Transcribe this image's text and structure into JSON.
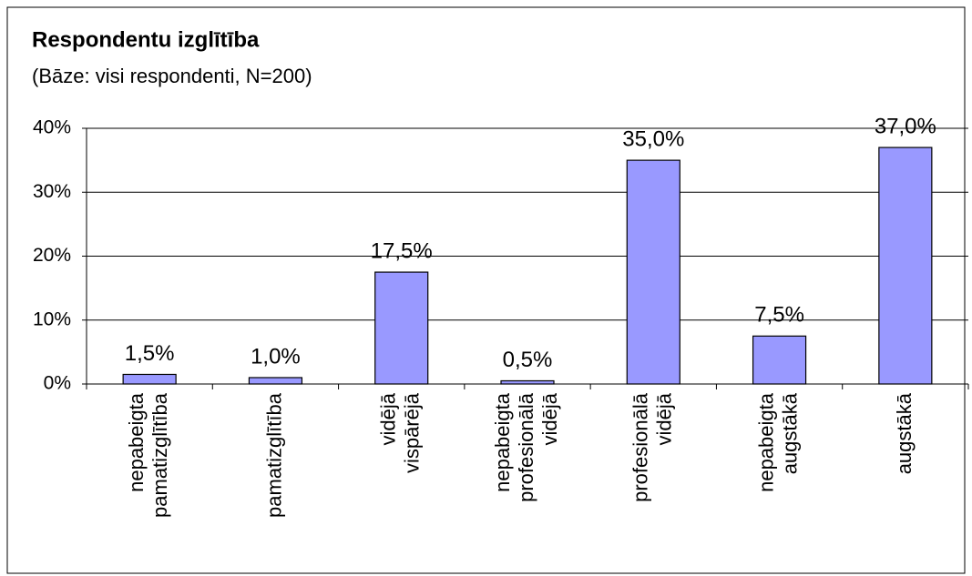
{
  "chart_data": {
    "type": "bar",
    "title": "Respondentu izglītība",
    "subtitle": "(Bāze: visi respondenti, N=200)",
    "categories": [
      "nepabeigta pamatizglītība",
      "pamatizglītība",
      "vidējā vispārējā",
      "nepabeigta profesionālā vidējā",
      "profesionālā vidējā",
      "nepabeigta augstākā",
      "augstākā"
    ],
    "values": [
      1.5,
      1.0,
      17.5,
      0.5,
      35.0,
      7.5,
      37.0
    ],
    "value_labels": [
      "1,5%",
      "1,0%",
      "17,5%",
      "0,5%",
      "35,0%",
      "7,5%",
      "37,0%"
    ],
    "color": "#9999ff",
    "ylim": [
      0,
      40
    ],
    "yticks": [
      {
        "value": 0,
        "label": "0%"
      },
      {
        "value": 10,
        "label": "10%"
      },
      {
        "value": 20,
        "label": "20%"
      },
      {
        "value": 30,
        "label": "30%"
      },
      {
        "value": 40,
        "label": "40%"
      }
    ],
    "grid": true
  }
}
